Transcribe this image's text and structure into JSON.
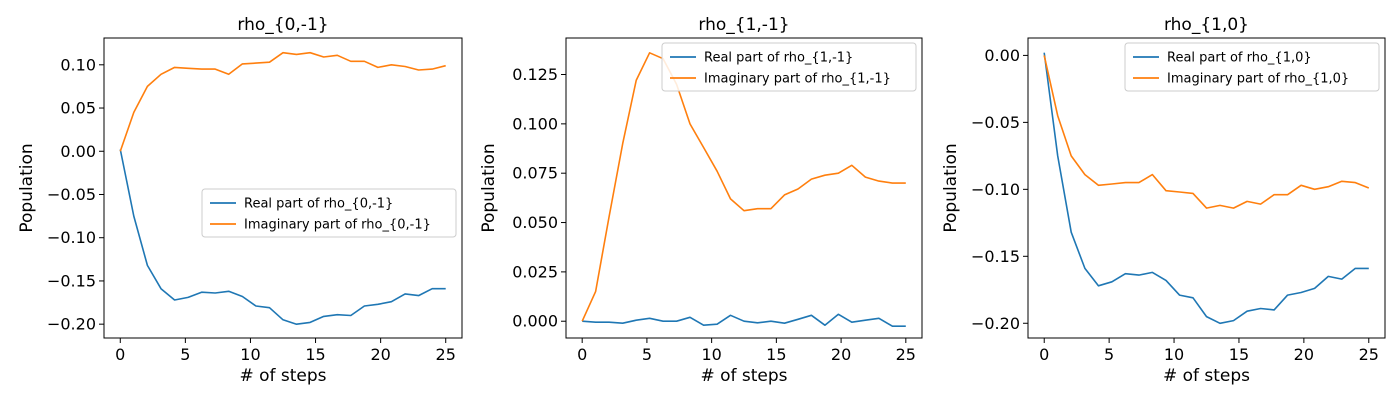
{
  "colors": {
    "real": "#1f77b4",
    "imag": "#ff7f0e"
  },
  "chart_data": [
    {
      "type": "line",
      "title": "rho_{0,-1}",
      "xlabel": "# of steps",
      "ylabel": "Population",
      "xlim": [
        -1.25,
        26.25
      ],
      "ylim": [
        -0.216,
        0.131
      ],
      "xticks": [
        0,
        5,
        10,
        15,
        20,
        25
      ],
      "xtick_labels": [
        "0",
        "5",
        "10",
        "15",
        "20",
        "25"
      ],
      "yticks": [
        -0.2,
        -0.15,
        -0.1,
        -0.05,
        0.0,
        0.05,
        0.1
      ],
      "ytick_labels": [
        "−0.20",
        "−0.15",
        "−0.10",
        "−0.05",
        "0.00",
        "0.05",
        "0.10"
      ],
      "legend_position": "center-right",
      "x": [
        0,
        1.04,
        2.08,
        3.13,
        4.17,
        5.21,
        6.25,
        7.29,
        8.33,
        9.38,
        10.42,
        11.46,
        12.5,
        13.54,
        14.58,
        15.63,
        16.67,
        17.71,
        18.75,
        19.79,
        20.83,
        21.88,
        22.92,
        23.96,
        25
      ],
      "series": [
        {
          "name": "Real part of rho_{0,-1}",
          "color": "real",
          "values": [
            0.002,
            -0.075,
            -0.132,
            -0.159,
            -0.172,
            -0.169,
            -0.163,
            -0.164,
            -0.162,
            -0.168,
            -0.179,
            -0.181,
            -0.195,
            -0.2,
            -0.198,
            -0.191,
            -0.189,
            -0.19,
            -0.179,
            -0.177,
            -0.174,
            -0.165,
            -0.167,
            -0.159,
            -0.159
          ]
        },
        {
          "name": "Imaginary part of rho_{0,-1}",
          "color": "imag",
          "values": [
            0.0,
            0.045,
            0.075,
            0.089,
            0.097,
            0.096,
            0.095,
            0.095,
            0.089,
            0.101,
            0.102,
            0.103,
            0.114,
            0.112,
            0.114,
            0.109,
            0.111,
            0.104,
            0.104,
            0.097,
            0.1,
            0.098,
            0.094,
            0.095,
            0.099
          ]
        }
      ]
    },
    {
      "type": "line",
      "title": "rho_{1,-1}",
      "xlabel": "# of steps",
      "ylabel": "Population",
      "xlim": [
        -1.25,
        26.25
      ],
      "ylim": [
        -0.0085,
        0.1435
      ],
      "xticks": [
        0,
        5,
        10,
        15,
        20,
        25
      ],
      "xtick_labels": [
        "0",
        "5",
        "10",
        "15",
        "20",
        "25"
      ],
      "yticks": [
        0.0,
        0.025,
        0.05,
        0.075,
        0.1,
        0.125
      ],
      "ytick_labels": [
        "0.000",
        "0.025",
        "0.050",
        "0.075",
        "0.100",
        "0.125"
      ],
      "legend_position": "upper-right",
      "x": [
        0,
        1.04,
        2.08,
        3.13,
        4.17,
        5.21,
        6.25,
        7.29,
        8.33,
        9.38,
        10.42,
        11.46,
        12.5,
        13.54,
        14.58,
        15.63,
        16.67,
        17.71,
        18.75,
        19.79,
        20.83,
        21.88,
        22.92,
        23.96,
        25
      ],
      "series": [
        {
          "name": "Real part of rho_{1,-1}",
          "color": "real",
          "values": [
            0.0,
            -0.0005,
            -0.0005,
            -0.001,
            0.0005,
            0.0015,
            0.0,
            0.0,
            0.002,
            -0.002,
            -0.0015,
            0.003,
            0.0,
            -0.0008,
            0.0,
            -0.001,
            0.001,
            0.003,
            -0.002,
            0.0035,
            -0.0005,
            0.0005,
            0.0015,
            -0.0025,
            -0.0025
          ]
        },
        {
          "name": "Imaginary part of rho_{1,-1}",
          "color": "imag",
          "values": [
            0.0,
            0.015,
            0.053,
            0.09,
            0.122,
            0.136,
            0.133,
            0.12,
            0.1,
            0.088,
            0.076,
            0.062,
            0.056,
            0.057,
            0.057,
            0.064,
            0.067,
            0.072,
            0.074,
            0.075,
            0.079,
            0.073,
            0.071,
            0.07,
            0.07
          ]
        }
      ]
    },
    {
      "type": "line",
      "title": "rho_{1,0}",
      "xlabel": "# of steps",
      "ylabel": "Population",
      "xlim": [
        -1.25,
        26.25
      ],
      "ylim": [
        -0.211,
        0.013
      ],
      "xticks": [
        0,
        5,
        10,
        15,
        20,
        25
      ],
      "xtick_labels": [
        "0",
        "5",
        "10",
        "15",
        "20",
        "25"
      ],
      "yticks": [
        -0.2,
        -0.15,
        -0.1,
        -0.05,
        0.0
      ],
      "ytick_labels": [
        "−0.20",
        "−0.15",
        "−0.10",
        "−0.05",
        "0.00"
      ],
      "legend_position": "upper-right",
      "x": [
        0,
        1.04,
        2.08,
        3.13,
        4.17,
        5.21,
        6.25,
        7.29,
        8.33,
        9.38,
        10.42,
        11.46,
        12.5,
        13.54,
        14.58,
        15.63,
        16.67,
        17.71,
        18.75,
        19.79,
        20.83,
        21.88,
        22.92,
        23.96,
        25
      ],
      "series": [
        {
          "name": "Real part of rho_{1,0}",
          "color": "real",
          "values": [
            0.002,
            -0.075,
            -0.132,
            -0.159,
            -0.172,
            -0.169,
            -0.163,
            -0.164,
            -0.162,
            -0.168,
            -0.179,
            -0.181,
            -0.195,
            -0.2,
            -0.198,
            -0.191,
            -0.189,
            -0.19,
            -0.179,
            -0.177,
            -0.174,
            -0.165,
            -0.167,
            -0.159,
            -0.159
          ]
        },
        {
          "name": "Imaginary part of rho_{1,0}",
          "color": "imag",
          "values": [
            0.0,
            -0.045,
            -0.075,
            -0.089,
            -0.097,
            -0.096,
            -0.095,
            -0.095,
            -0.089,
            -0.101,
            -0.102,
            -0.103,
            -0.114,
            -0.112,
            -0.114,
            -0.109,
            -0.111,
            -0.104,
            -0.104,
            -0.097,
            -0.1,
            -0.098,
            -0.094,
            -0.095,
            -0.099
          ]
        }
      ]
    }
  ]
}
